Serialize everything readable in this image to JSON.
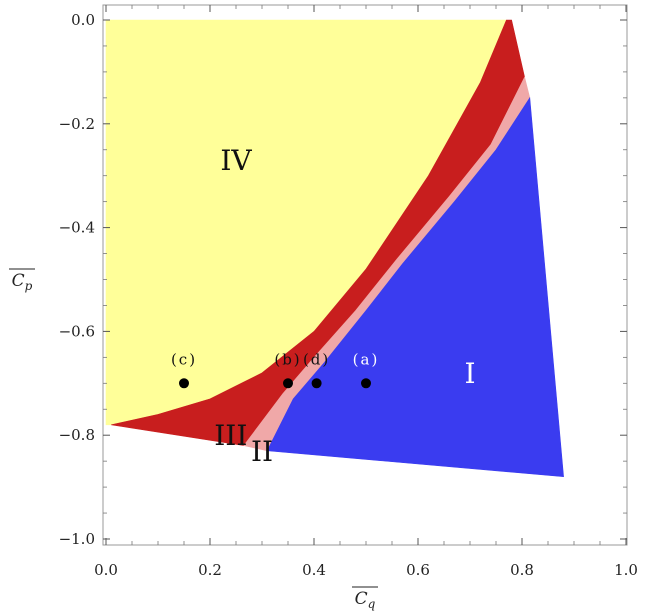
{
  "chart_data": {
    "type": "area",
    "title": "",
    "xlabel": "C_q",
    "ylabel": "C_p",
    "xlim": [
      0.0,
      1.0
    ],
    "ylim": [
      -1.05,
      0.0
    ],
    "x_ticks": [
      "0.0",
      "0.2",
      "0.4",
      "0.6",
      "0.8",
      "1.0"
    ],
    "y_ticks": [
      "0.0",
      "−0.2",
      "−0.4",
      "−0.6",
      "−0.8",
      "−1.0"
    ],
    "grid": false,
    "colors": {
      "I": "#3a3cf0",
      "II": "#f0a8a8",
      "III": "#c81e1e",
      "IV": "#ffff99"
    },
    "regions": [
      {
        "label": "IV",
        "label_color": "#111111",
        "label_at": [
          0.25,
          -0.27
        ],
        "color": "#ffff99",
        "boundary": [
          [
            0.0,
            0.0
          ],
          [
            0.77,
            0.0
          ],
          [
            0.72,
            -0.12
          ],
          [
            0.62,
            -0.3
          ],
          [
            0.5,
            -0.48
          ],
          [
            0.4,
            -0.6
          ],
          [
            0.3,
            -0.68
          ],
          [
            0.2,
            -0.73
          ],
          [
            0.1,
            -0.76
          ],
          [
            0.01,
            -0.78
          ],
          [
            0.0,
            -0.78
          ]
        ]
      },
      {
        "label": "III",
        "label_color": "#111111",
        "label_at": [
          0.24,
          -0.8
        ],
        "color": "#c81e1e",
        "boundary": [
          [
            0.77,
            0.0
          ],
          [
            0.78,
            0.0
          ],
          [
            0.805,
            -0.11
          ],
          [
            0.74,
            -0.24
          ],
          [
            0.66,
            -0.34
          ],
          [
            0.56,
            -0.46
          ],
          [
            0.48,
            -0.56
          ],
          [
            0.4,
            -0.65
          ],
          [
            0.34,
            -0.72
          ],
          [
            0.265,
            -0.82
          ],
          [
            0.01,
            -0.78
          ],
          [
            0.1,
            -0.76
          ],
          [
            0.2,
            -0.73
          ],
          [
            0.3,
            -0.68
          ],
          [
            0.4,
            -0.6
          ],
          [
            0.5,
            -0.48
          ],
          [
            0.62,
            -0.3
          ],
          [
            0.72,
            -0.12
          ]
        ]
      },
      {
        "label": "II",
        "label_color": "#111111",
        "label_at": [
          0.3,
          -0.83
        ],
        "color": "#f0a8a8",
        "boundary": [
          [
            0.805,
            -0.11
          ],
          [
            0.815,
            -0.15
          ],
          [
            0.75,
            -0.25
          ],
          [
            0.67,
            -0.35
          ],
          [
            0.57,
            -0.47
          ],
          [
            0.5,
            -0.56
          ],
          [
            0.42,
            -0.66
          ],
          [
            0.36,
            -0.73
          ],
          [
            0.31,
            -0.83
          ],
          [
            0.265,
            -0.82
          ],
          [
            0.34,
            -0.72
          ],
          [
            0.4,
            -0.65
          ],
          [
            0.48,
            -0.56
          ],
          [
            0.56,
            -0.46
          ],
          [
            0.66,
            -0.34
          ],
          [
            0.74,
            -0.24
          ]
        ]
      },
      {
        "label": "I",
        "label_color": "#ffffff",
        "label_at": [
          0.7,
          -0.68
        ],
        "color": "#3a3cf0",
        "boundary": [
          [
            0.815,
            -0.15
          ],
          [
            0.88,
            -0.88
          ],
          [
            0.31,
            -0.83
          ],
          [
            0.36,
            -0.73
          ],
          [
            0.42,
            -0.66
          ],
          [
            0.5,
            -0.56
          ],
          [
            0.57,
            -0.47
          ],
          [
            0.67,
            -0.35
          ],
          [
            0.75,
            -0.25
          ]
        ]
      }
    ],
    "points": [
      {
        "label": "(a)",
        "x": 0.5,
        "y": -0.7,
        "label_color": "#ffffff"
      },
      {
        "label": "(b)",
        "x": 0.35,
        "y": -0.7,
        "label_color": "#111111"
      },
      {
        "label": "(c)",
        "x": 0.15,
        "y": -0.7,
        "label_color": "#111111"
      },
      {
        "label": "(d)",
        "x": 0.405,
        "y": -0.7,
        "label_color": "#111111"
      }
    ]
  }
}
